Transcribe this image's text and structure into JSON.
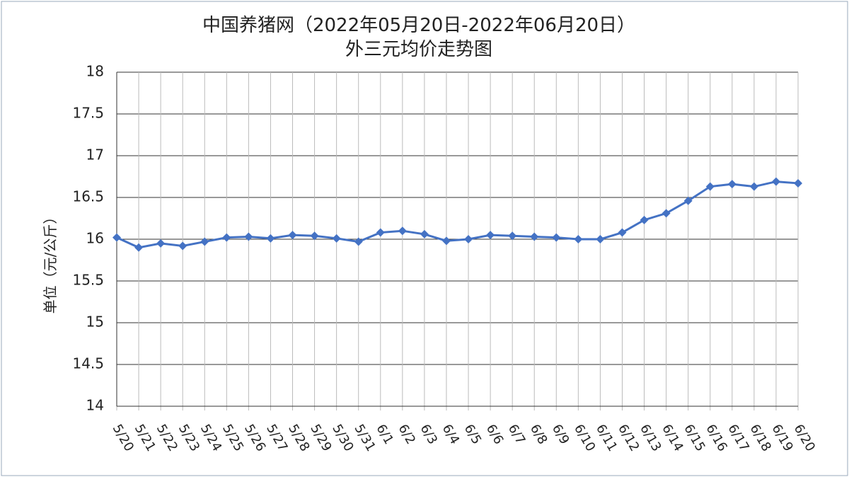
{
  "chart_data": {
    "type": "line",
    "title": "中国养猪网（2022年05月20日-2022年06月20日）",
    "subtitle": "外三元均价走势图",
    "y_label": "单位（元/公斤）",
    "categories": [
      "5/20",
      "5/21",
      "5/22",
      "5/23",
      "5/24",
      "5/25",
      "5/26",
      "5/27",
      "5/28",
      "5/29",
      "5/30",
      "5/31",
      "6/1",
      "6/2",
      "6/3",
      "6/4",
      "6/5",
      "6/6",
      "6/7",
      "6/8",
      "6/9",
      "6/10",
      "6/11",
      "6/12",
      "6/13",
      "6/14",
      "6/15",
      "6/16",
      "6/17",
      "6/18",
      "6/19",
      "6/20"
    ],
    "values": [
      16.02,
      15.9,
      15.95,
      15.92,
      15.97,
      16.02,
      16.03,
      16.01,
      16.05,
      16.04,
      16.01,
      15.97,
      16.08,
      16.1,
      16.06,
      15.98,
      16.0,
      16.05,
      16.04,
      16.03,
      16.02,
      16.0,
      16.0,
      16.08,
      16.23,
      16.31,
      16.46,
      16.63,
      16.66,
      16.63,
      16.69,
      16.67
    ],
    "color": "#4472c4",
    "ylim": [
      14,
      18
    ],
    "yticks": [
      14,
      14.5,
      15,
      15.5,
      16,
      16.5,
      17,
      17.5,
      18
    ],
    "grid": true
  }
}
